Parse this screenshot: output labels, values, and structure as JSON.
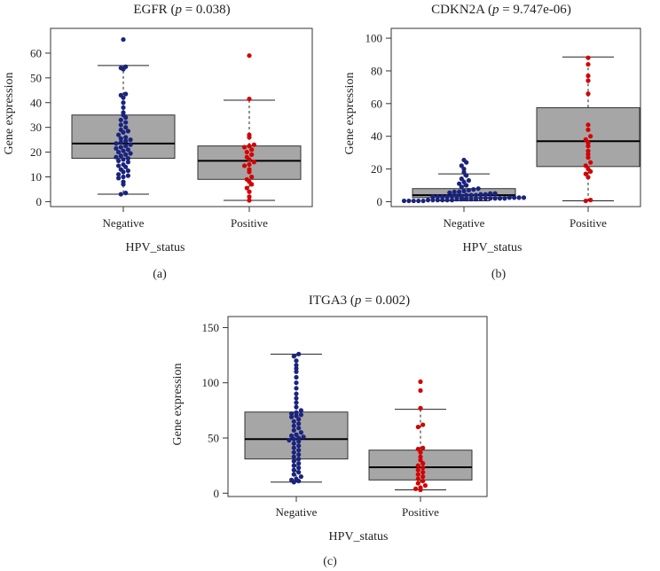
{
  "colors": {
    "negative_dots": "#1a237e",
    "positive_dots": "#d50000",
    "box_fill": "#a6a6a6",
    "axis": "#333333"
  },
  "chart_data": [
    {
      "type": "boxplot",
      "panel_label": "(a)",
      "title_gene": "EGFR",
      "title_p": "0.038",
      "xlabel": "HPV_status",
      "ylabel": "Gene expression",
      "categories": [
        "Negative",
        "Positive"
      ],
      "ylim": [
        -2,
        70
      ],
      "yticks": [
        0,
        10,
        20,
        30,
        40,
        50,
        60
      ],
      "boxes": [
        {
          "name": "Negative",
          "whisker_low": 3,
          "q1": 17.5,
          "median": 23.5,
          "q3": 35,
          "whisker_high": 55
        },
        {
          "name": "Positive",
          "whisker_low": 0.5,
          "q1": 9,
          "median": 16.5,
          "q3": 22.5,
          "whisker_high": 41
        }
      ],
      "points": [
        [
          3,
          3.5,
          7,
          8,
          9.5,
          10,
          10.5,
          11,
          12,
          12.5,
          13,
          14,
          14.5,
          15,
          16,
          16.5,
          17,
          17.5,
          18,
          18.5,
          19,
          19.5,
          20,
          20.5,
          21,
          21.5,
          22,
          22.5,
          23,
          23.5,
          24,
          24.5,
          25,
          25.5,
          26,
          27,
          28,
          28.5,
          29,
          30,
          31,
          32,
          33,
          34,
          35,
          36,
          38,
          40,
          42,
          43,
          43.5,
          53.5,
          54,
          54.5,
          65.5
        ],
        [
          0.5,
          2,
          4,
          5.5,
          7,
          8,
          9,
          10,
          12,
          13,
          14.5,
          15,
          16,
          17,
          18,
          19,
          20,
          21,
          22,
          22.5,
          23,
          26,
          27,
          41.5,
          59
        ]
      ]
    },
    {
      "type": "boxplot",
      "panel_label": "(b)",
      "title_gene": "CDKN2A",
      "title_p": "9.747e-06",
      "xlabel": "HPV_status",
      "ylabel": "Gene expression",
      "categories": [
        "Negative",
        "Positive"
      ],
      "ylim": [
        -3,
        106
      ],
      "yticks": [
        0,
        20,
        40,
        60,
        80,
        100
      ],
      "boxes": [
        {
          "name": "Negative",
          "whisker_low": 0.5,
          "q1": 2.5,
          "median": 4,
          "q3": 8,
          "whisker_high": 17
        },
        {
          "name": "Positive",
          "whisker_low": 0.5,
          "q1": 21.5,
          "median": 37,
          "q3": 57.5,
          "whisker_high": 88.5
        }
      ],
      "points": [
        [
          0.5,
          0.5,
          0.5,
          0.5,
          0.5,
          1,
          1,
          1,
          1,
          1,
          1,
          1.5,
          1.5,
          1.5,
          1.5,
          1.5,
          2,
          2,
          2,
          2,
          2,
          2,
          2.5,
          2.5,
          2.5,
          2.5,
          3,
          3,
          3,
          3,
          3.5,
          3.5,
          3.5,
          4,
          4,
          4,
          4.5,
          4.5,
          5,
          5,
          5.5,
          6,
          6,
          6.5,
          7,
          7.5,
          8,
          9,
          10,
          11,
          12,
          13,
          14,
          16,
          18,
          20,
          22,
          24,
          25.5
        ],
        [
          0.5,
          1,
          15,
          17,
          18.5,
          20,
          22,
          24,
          27,
          29,
          31,
          34,
          36,
          38,
          40,
          44,
          47,
          66,
          74,
          77,
          84,
          88
        ]
      ]
    },
    {
      "type": "boxplot",
      "panel_label": "(c)",
      "title_gene": "ITGA3",
      "title_p": "0.002",
      "xlabel": "HPV_status",
      "ylabel": "Gene expression",
      "categories": [
        "Negative",
        "Positive"
      ],
      "ylim": [
        -3,
        160
      ],
      "yticks": [
        0,
        50,
        100,
        150
      ],
      "boxes": [
        {
          "name": "Negative",
          "whisker_low": 10,
          "q1": 31,
          "median": 49,
          "q3": 73.5,
          "whisker_high": 126
        },
        {
          "name": "Positive",
          "whisker_low": 3,
          "q1": 12,
          "median": 23.5,
          "q3": 39,
          "whisker_high": 76
        }
      ],
      "points": [
        [
          10,
          11,
          12,
          13,
          15,
          17,
          19,
          21,
          23,
          25,
          27,
          29,
          31,
          33,
          35,
          37,
          39,
          41,
          43,
          45,
          47,
          48,
          49,
          50,
          51,
          52,
          53,
          55,
          57,
          59,
          61,
          63,
          65,
          67,
          69,
          70,
          71,
          72,
          73,
          75,
          78,
          82,
          86,
          90,
          95,
          100,
          105,
          110,
          113,
          116,
          120,
          124,
          126
        ],
        [
          3,
          4,
          5,
          7,
          9,
          11,
          13,
          15,
          17,
          19,
          21,
          23,
          25,
          27,
          30,
          33,
          37,
          40,
          41,
          60,
          62,
          77,
          93,
          101
        ]
      ]
    }
  ]
}
